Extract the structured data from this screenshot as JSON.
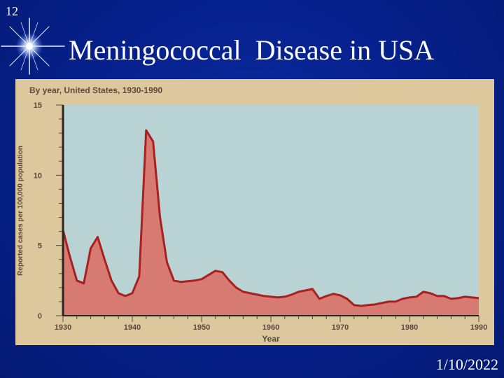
{
  "slide": {
    "number": "12",
    "title": "Meningococcal  Disease in USA",
    "date": "1/10/2022"
  },
  "colors": {
    "background": "#06208a",
    "plot_background": "#b9d2d4",
    "panel": "#ddc89e",
    "area_fill": "#d67a72",
    "area_line": "#a8201f",
    "axis": "#2c2420"
  },
  "icons": {
    "star": "sparkle-star-icon"
  },
  "chart_data": {
    "type": "area",
    "title": "By year, United States, 1930-1990",
    "xlabel": "Year",
    "ylabel": "Reported cases per 100,000 population",
    "xlim": [
      1930,
      1990
    ],
    "ylim": [
      0,
      15
    ],
    "x_ticks": [
      1930,
      1940,
      1950,
      1960,
      1970,
      1980,
      1990
    ],
    "y_ticks": [
      0,
      5,
      10,
      15
    ],
    "grid": false,
    "x": [
      1930,
      1931,
      1932,
      1933,
      1934,
      1935,
      1936,
      1937,
      1938,
      1939,
      1940,
      1941,
      1942,
      1943,
      1944,
      1945,
      1946,
      1947,
      1948,
      1949,
      1950,
      1951,
      1952,
      1953,
      1954,
      1955,
      1956,
      1957,
      1958,
      1959,
      1960,
      1961,
      1962,
      1963,
      1964,
      1965,
      1966,
      1967,
      1968,
      1969,
      1970,
      1971,
      1972,
      1973,
      1974,
      1975,
      1976,
      1977,
      1978,
      1979,
      1980,
      1981,
      1982,
      1983,
      1984,
      1985,
      1986,
      1987,
      1988,
      1989,
      1990
    ],
    "values": [
      6.1,
      4.2,
      2.5,
      2.3,
      4.8,
      5.6,
      4.0,
      2.5,
      1.6,
      1.4,
      1.6,
      2.8,
      13.2,
      12.4,
      7.0,
      3.8,
      2.5,
      2.4,
      2.45,
      2.5,
      2.6,
      2.9,
      3.2,
      3.1,
      2.5,
      2.0,
      1.7,
      1.6,
      1.5,
      1.4,
      1.35,
      1.3,
      1.35,
      1.5,
      1.7,
      1.8,
      1.9,
      1.2,
      1.4,
      1.55,
      1.45,
      1.2,
      0.75,
      0.7,
      0.75,
      0.8,
      0.9,
      1.0,
      1.0,
      1.2,
      1.3,
      1.35,
      1.7,
      1.6,
      1.4,
      1.4,
      1.2,
      1.25,
      1.35,
      1.3,
      1.25
    ]
  }
}
